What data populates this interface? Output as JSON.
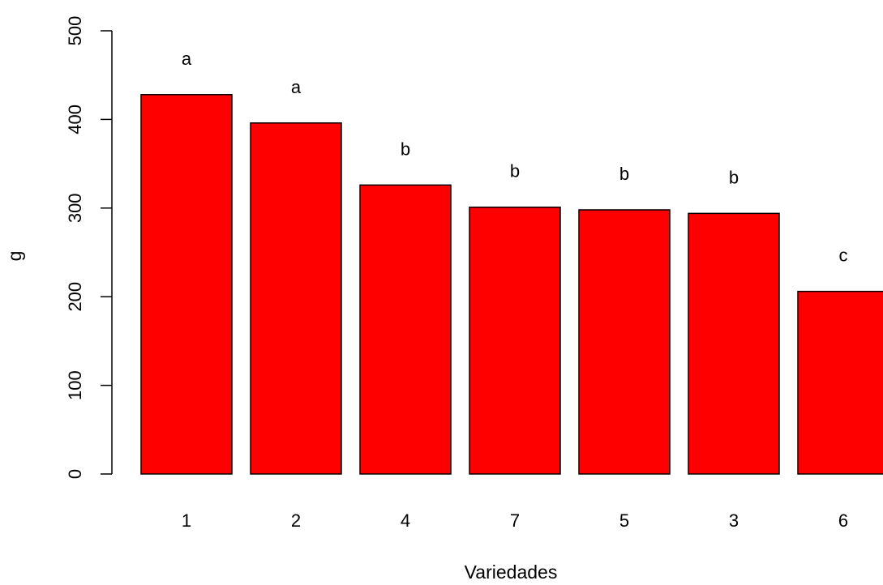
{
  "chart_data": {
    "type": "bar",
    "title": "",
    "xlabel": "Variedades",
    "ylabel": "g",
    "categories": [
      "1",
      "2",
      "4",
      "7",
      "5",
      "3",
      "6"
    ],
    "values": [
      428,
      396,
      326,
      301,
      298,
      294,
      206
    ],
    "group_letters": [
      "a",
      "a",
      "b",
      "b",
      "b",
      "b",
      "c"
    ],
    "ylim": [
      0,
      500
    ],
    "yticks": [
      "0",
      "100",
      "200",
      "300",
      "400",
      "500"
    ],
    "grid": false,
    "legend": "none",
    "colors": {
      "bar_fill": "#ff0000",
      "bar_stroke": "#000000"
    }
  }
}
